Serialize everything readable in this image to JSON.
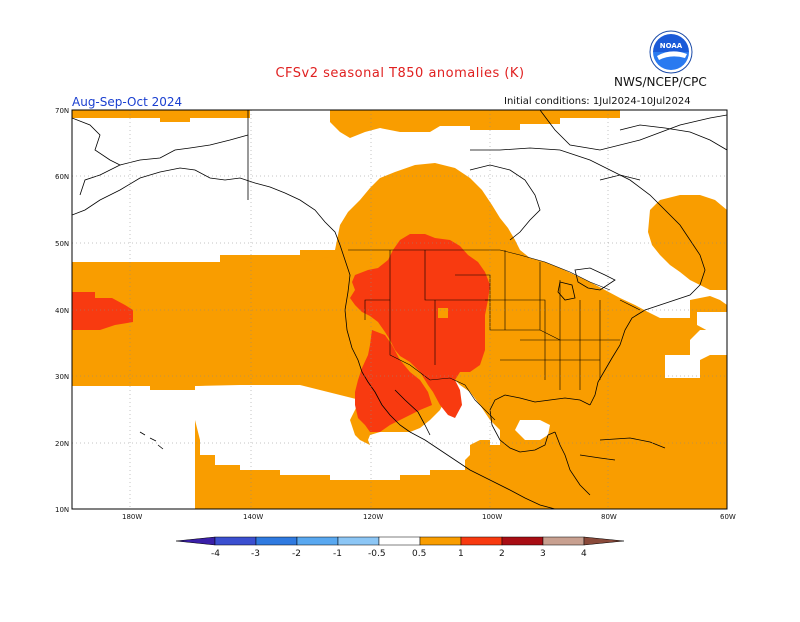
{
  "title": "CFSv2 seasonal T850 anomalies (K)",
  "agency": "NWS/NCEP/CPC",
  "period": "Aug-Sep-Oct 2024",
  "initial_conditions": "Initial conditions: 1Jul2024-10Jul2024",
  "logo_text": "NOAA",
  "lat_labels": [
    "70N",
    "60N",
    "50N",
    "40N",
    "30N",
    "20N",
    "10N"
  ],
  "lon_labels": [
    "180W",
    "140W",
    "120W",
    "100W",
    "80W",
    "60W"
  ],
  "colorbar": {
    "labels": [
      "-4",
      "-3",
      "-2",
      "-1",
      "-0.5",
      "0.5",
      "1",
      "2",
      "3",
      "4"
    ],
    "colors": [
      "#3a1fa8",
      "#3b4fd0",
      "#2f7ae0",
      "#59a8f0",
      "#8cc6f5",
      "#ffffff",
      "#f99d00",
      "#f83a10",
      "#a80d14",
      "#c8a090",
      "#8a4a3a"
    ]
  },
  "colors": {
    "anomaly_0_5_to_1": "#f99d00",
    "anomaly_1_to_2": "#f83a10",
    "coastline": "#000000",
    "title_red": "#e02020",
    "period_blue": "#1a3fd0"
  }
}
